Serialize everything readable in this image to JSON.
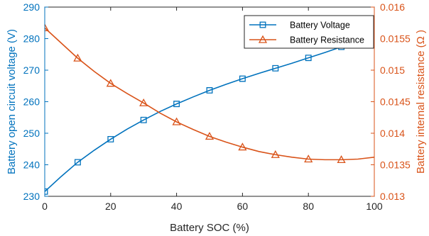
{
  "chart_data": {
    "type": "line",
    "xlabel": "Battery SOC (%)",
    "ylabel_left": "Battery open circuit voltage (V)",
    "ylabel_right": "Battery internal resistance (Ω )",
    "xlim": [
      0,
      100
    ],
    "ylim_left": [
      230,
      290
    ],
    "ylim_right": [
      0.013,
      0.016
    ],
    "x_ticks": [
      "0",
      "20",
      "40",
      "60",
      "80",
      "100"
    ],
    "y_ticks_left": [
      "230",
      "240",
      "250",
      "260",
      "270",
      "280",
      "290"
    ],
    "y_ticks_right": [
      "0.013",
      "0.0135",
      "0.014",
      "0.0145",
      "0.015",
      "0.0155",
      "0.016"
    ],
    "grid": false,
    "legend_position": "top-right",
    "series": [
      {
        "name": "Battery Voltage",
        "axis": "left",
        "marker": "square",
        "color": "#0072BD",
        "markers": [
          {
            "x": 0,
            "y": 231.5
          },
          {
            "x": 10,
            "y": 240.8
          },
          {
            "x": 20,
            "y": 248.1
          },
          {
            "x": 30,
            "y": 254.2
          },
          {
            "x": 40,
            "y": 259.3
          },
          {
            "x": 50,
            "y": 263.6
          },
          {
            "x": 60,
            "y": 267.3
          },
          {
            "x": 70,
            "y": 270.6
          },
          {
            "x": 80,
            "y": 273.9
          },
          {
            "x": 90,
            "y": 277.4
          }
        ],
        "line": [
          {
            "x": 0,
            "y": 231.5
          },
          {
            "x": 5,
            "y": 236.3
          },
          {
            "x": 10,
            "y": 240.8
          },
          {
            "x": 15,
            "y": 244.6
          },
          {
            "x": 20,
            "y": 248.1
          },
          {
            "x": 25,
            "y": 251.3
          },
          {
            "x": 30,
            "y": 254.2
          },
          {
            "x": 35,
            "y": 256.9
          },
          {
            "x": 40,
            "y": 259.3
          },
          {
            "x": 45,
            "y": 261.5
          },
          {
            "x": 50,
            "y": 263.6
          },
          {
            "x": 55,
            "y": 265.5
          },
          {
            "x": 60,
            "y": 267.3
          },
          {
            "x": 65,
            "y": 269.0
          },
          {
            "x": 70,
            "y": 270.6
          },
          {
            "x": 75,
            "y": 272.2
          },
          {
            "x": 80,
            "y": 273.9
          },
          {
            "x": 85,
            "y": 275.6
          },
          {
            "x": 90,
            "y": 277.4
          },
          {
            "x": 95,
            "y": 279.2
          },
          {
            "x": 100,
            "y": 281.0
          }
        ]
      },
      {
        "name": "Battery Resistance",
        "axis": "right",
        "marker": "triangle",
        "color": "#D95319",
        "markers": [
          {
            "x": 0,
            "y": 0.01567
          },
          {
            "x": 10,
            "y": 0.01519
          },
          {
            "x": 20,
            "y": 0.01479
          },
          {
            "x": 30,
            "y": 0.01448
          },
          {
            "x": 40,
            "y": 0.01418
          },
          {
            "x": 50,
            "y": 0.01395
          },
          {
            "x": 60,
            "y": 0.01378
          },
          {
            "x": 70,
            "y": 0.01366
          },
          {
            "x": 80,
            "y": 0.01359
          },
          {
            "x": 90,
            "y": 0.01358
          }
        ],
        "line": [
          {
            "x": 0,
            "y": 0.01567
          },
          {
            "x": 5,
            "y": 0.01543
          },
          {
            "x": 10,
            "y": 0.01519
          },
          {
            "x": 15,
            "y": 0.01498
          },
          {
            "x": 20,
            "y": 0.01479
          },
          {
            "x": 25,
            "y": 0.01463
          },
          {
            "x": 30,
            "y": 0.01448
          },
          {
            "x": 35,
            "y": 0.01432
          },
          {
            "x": 40,
            "y": 0.01418
          },
          {
            "x": 45,
            "y": 0.01406
          },
          {
            "x": 50,
            "y": 0.01395
          },
          {
            "x": 55,
            "y": 0.01386
          },
          {
            "x": 60,
            "y": 0.01378
          },
          {
            "x": 65,
            "y": 0.01371
          },
          {
            "x": 70,
            "y": 0.01366
          },
          {
            "x": 75,
            "y": 0.01362
          },
          {
            "x": 80,
            "y": 0.01359
          },
          {
            "x": 85,
            "y": 0.01358
          },
          {
            "x": 90,
            "y": 0.01358
          },
          {
            "x": 95,
            "y": 0.01359
          },
          {
            "x": 100,
            "y": 0.01362
          }
        ]
      }
    ]
  }
}
